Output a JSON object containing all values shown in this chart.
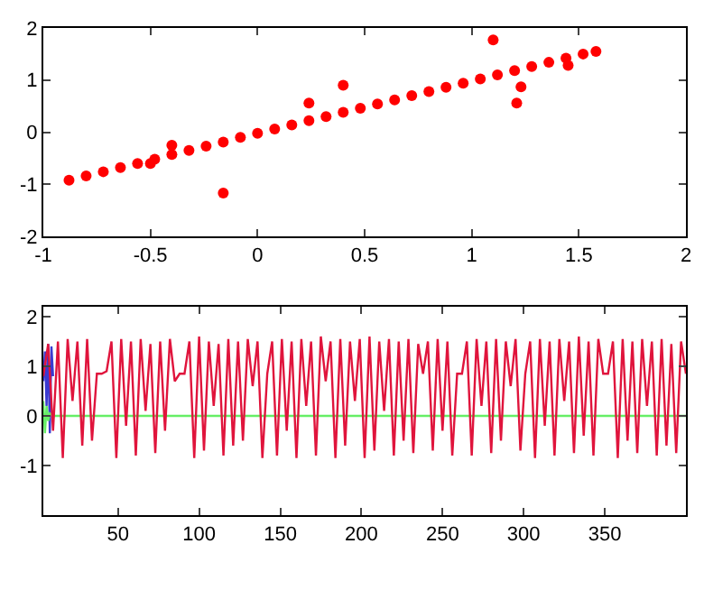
{
  "chart_data": [
    {
      "type": "scatter",
      "marker": "circle",
      "color": "#ff0000",
      "xlim": [
        -1,
        2
      ],
      "ylim": [
        -2,
        2
      ],
      "xticks": [
        -1,
        -0.5,
        0,
        0.5,
        1,
        1.5,
        2
      ],
      "yticks": [
        -2,
        -1,
        0,
        1,
        2
      ],
      "x": [
        -0.88,
        -0.8,
        -0.72,
        -0.64,
        -0.56,
        -0.48,
        -0.4,
        -0.32,
        -0.24,
        -0.16,
        -0.08,
        0.0,
        0.08,
        0.16,
        0.24,
        0.32,
        0.4,
        0.48,
        0.56,
        0.64,
        0.72,
        0.8,
        0.88,
        0.96,
        1.04,
        1.12,
        1.2,
        1.28,
        1.36,
        1.44,
        1.52,
        1.58,
        -0.4,
        -0.16,
        0.24,
        0.4,
        1.1,
        1.21,
        1.23,
        1.45,
        -0.5
      ],
      "values": [
        -0.92,
        -0.84,
        -0.76,
        -0.68,
        -0.6,
        -0.52,
        -0.43,
        -0.35,
        -0.27,
        -0.19,
        -0.1,
        -0.02,
        0.06,
        0.14,
        0.22,
        0.3,
        0.38,
        0.46,
        0.54,
        0.62,
        0.7,
        0.78,
        0.86,
        0.94,
        1.02,
        1.1,
        1.18,
        1.26,
        1.34,
        1.42,
        1.5,
        1.55,
        -0.25,
        -1.17,
        0.56,
        0.9,
        1.77,
        0.56,
        0.87,
        1.28,
        -0.6
      ]
    },
    {
      "type": "line",
      "marker": "none",
      "line_style": "solid",
      "xlim": [
        4,
        400
      ],
      "ylim": [
        -2,
        2.2
      ],
      "xticks": [
        50,
        100,
        150,
        200,
        250,
        300,
        350
      ],
      "yticks": [
        -1,
        0,
        1,
        2
      ],
      "series": [
        {
          "color": "#3a3ad0",
          "x": [
            4,
            5,
            6,
            7,
            8,
            9,
            10
          ],
          "values": [
            0.7,
            1.3,
            0.2,
            1.45,
            -0.35,
            1.4,
            0.8
          ]
        },
        {
          "color": "#66ee66",
          "x": [
            4,
            5,
            6,
            7,
            8,
            10,
            400
          ],
          "values": [
            0.3,
            -0.35,
            0.2,
            -0.1,
            0.05,
            0,
            0
          ]
        },
        {
          "color": "#e0143c",
          "x": [
            4,
            7,
            10,
            13,
            16,
            19,
            22,
            25,
            28,
            31,
            34,
            37,
            40,
            43,
            46,
            49,
            52,
            55,
            58,
            61,
            64,
            67,
            70,
            73,
            76,
            79,
            82,
            85,
            88,
            91,
            94,
            97,
            100,
            103,
            106,
            109,
            112,
            115,
            118,
            121,
            124,
            127,
            130,
            133,
            136,
            139,
            142,
            145,
            148,
            151,
            154,
            157,
            160,
            163,
            166,
            169,
            172,
            175,
            178,
            181,
            184,
            187,
            190,
            193,
            196,
            199,
            202,
            205,
            208,
            211,
            214,
            217,
            220,
            223,
            226,
            229,
            232,
            235,
            238,
            241,
            244,
            247,
            250,
            253,
            256,
            259,
            262,
            265,
            268,
            271,
            274,
            277,
            280,
            283,
            286,
            289,
            292,
            295,
            298,
            301,
            304,
            307,
            310,
            313,
            316,
            319,
            322,
            325,
            328,
            331,
            334,
            337,
            340,
            343,
            346,
            349,
            352,
            355,
            358,
            361,
            364,
            367,
            370,
            373,
            376,
            379,
            382,
            385,
            388,
            391,
            394,
            397,
            400
          ],
          "values": [
            0.8,
            1.45,
            -0.3,
            1.5,
            -0.85,
            1.55,
            0.3,
            1.5,
            -0.6,
            1.55,
            -0.5,
            0.85,
            0.85,
            0.9,
            1.5,
            -0.85,
            1.55,
            -0.2,
            1.5,
            -0.8,
            1.55,
            0.1,
            1.45,
            -0.75,
            1.5,
            -0.3,
            1.55,
            0.7,
            0.85,
            0.85,
            1.5,
            -0.85,
            1.6,
            -0.7,
            1.5,
            0.2,
            1.45,
            -0.8,
            1.55,
            -0.6,
            1.5,
            -0.5,
            1.55,
            0.6,
            1.5,
            -0.85,
            0.85,
            1.5,
            -0.8,
            1.55,
            -0.3,
            1.5,
            -0.85,
            1.55,
            0.2,
            1.5,
            -0.8,
            1.6,
            0.7,
            1.5,
            -0.85,
            1.55,
            -0.6,
            1.5,
            0.3,
            1.55,
            -0.85,
            1.6,
            -0.7,
            1.5,
            0.1,
            1.55,
            -0.8,
            1.5,
            -0.5,
            1.55,
            -0.75,
            1.45,
            0.85,
            1.5,
            -0.7,
            1.55,
            -0.3,
            1.5,
            -0.8,
            0.85,
            0.85,
            1.5,
            -0.8,
            1.55,
            0.2,
            1.5,
            -0.75,
            1.55,
            -0.5,
            1.5,
            0.6,
            1.55,
            -0.7,
            0.85,
            1.5,
            -0.85,
            1.55,
            -0.2,
            1.5,
            -0.8,
            1.55,
            0.3,
            1.5,
            -0.75,
            1.6,
            -0.4,
            1.5,
            -0.8,
            1.55,
            0.85,
            0.85,
            1.5,
            -0.85,
            1.55,
            -0.5,
            1.5,
            -0.75,
            1.55,
            0.2,
            1.5,
            -0.8,
            1.55,
            -0.6,
            1.45,
            -0.75,
            1.5,
            0.85
          ]
        }
      ]
    }
  ]
}
